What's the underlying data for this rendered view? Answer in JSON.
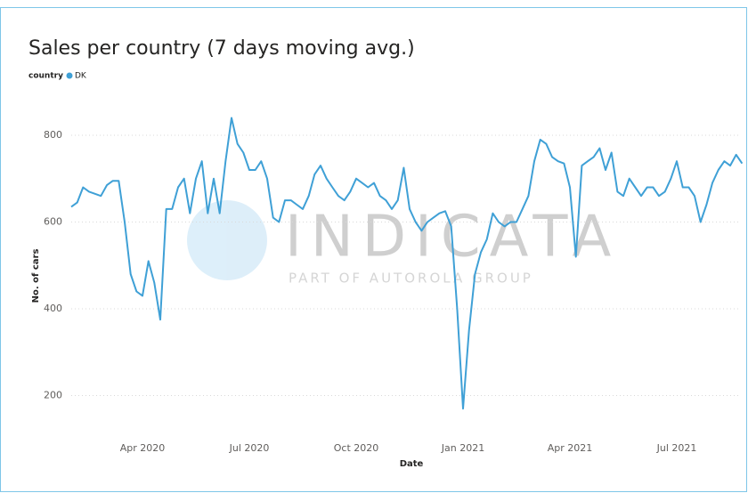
{
  "chart_data": {
    "type": "line",
    "title": "Sales per country (7 days moving avg.)",
    "legend_title": "country",
    "x_label": "Date",
    "y_label": "No. of cars",
    "watermark": "INDICATA",
    "watermark_subtitle": "PART OF AUTOROLA GROUP",
    "categories": [
      null,
      null,
      null,
      null,
      null,
      null,
      null,
      null,
      null,
      null,
      null,
      null,
      "Apr 2020",
      null,
      null,
      null,
      null,
      null,
      null,
      null,
      null,
      null,
      null,
      null,
      null,
      null,
      null,
      null,
      null,
      null,
      "Jul 2020",
      null,
      null,
      null,
      null,
      null,
      null,
      null,
      null,
      null,
      null,
      null,
      null,
      null,
      null,
      null,
      null,
      null,
      "Oct 2020",
      null,
      null,
      null,
      null,
      null,
      null,
      null,
      null,
      null,
      null,
      null,
      null,
      null,
      null,
      null,
      null,
      null,
      "Jan 2021",
      null,
      null,
      null,
      null,
      null,
      null,
      null,
      null,
      null,
      null,
      null,
      null,
      null,
      null,
      null,
      null,
      null,
      "Apr 2021",
      null,
      null,
      null,
      null,
      null,
      null,
      null,
      null,
      null,
      null,
      null,
      null,
      null,
      null,
      null,
      null,
      null,
      "Jul 2021",
      null,
      null,
      null,
      null,
      null,
      null,
      null,
      null,
      null,
      null,
      null
    ],
    "series": [
      {
        "name": "DK",
        "color": "#3fa0d6",
        "values": [
          635,
          645,
          680,
          670,
          665,
          660,
          685,
          695,
          695,
          600,
          480,
          440,
          430,
          510,
          460,
          375,
          630,
          630,
          680,
          700,
          620,
          700,
          740,
          620,
          700,
          620,
          740,
          840,
          780,
          760,
          720,
          720,
          740,
          700,
          610,
          600,
          650,
          650,
          640,
          630,
          660,
          710,
          730,
          700,
          680,
          660,
          650,
          670,
          700,
          690,
          680,
          690,
          660,
          650,
          630,
          650,
          725,
          630,
          600,
          580,
          600,
          610,
          620,
          625,
          590,
          400,
          170,
          350,
          480,
          530,
          560,
          620,
          600,
          590,
          600,
          600,
          630,
          660,
          740,
          790,
          780,
          750,
          740,
          735,
          680,
          520,
          730,
          740,
          750,
          770,
          720,
          760,
          670,
          660,
          700,
          680,
          660,
          680,
          680,
          660,
          670,
          700,
          740,
          680,
          680,
          660,
          600,
          640,
          690,
          720,
          740,
          730,
          755,
          735
        ]
      }
    ],
    "ylim": [
      100,
      850
    ],
    "yticks": [
      200,
      400,
      600,
      800
    ],
    "grid": true
  }
}
